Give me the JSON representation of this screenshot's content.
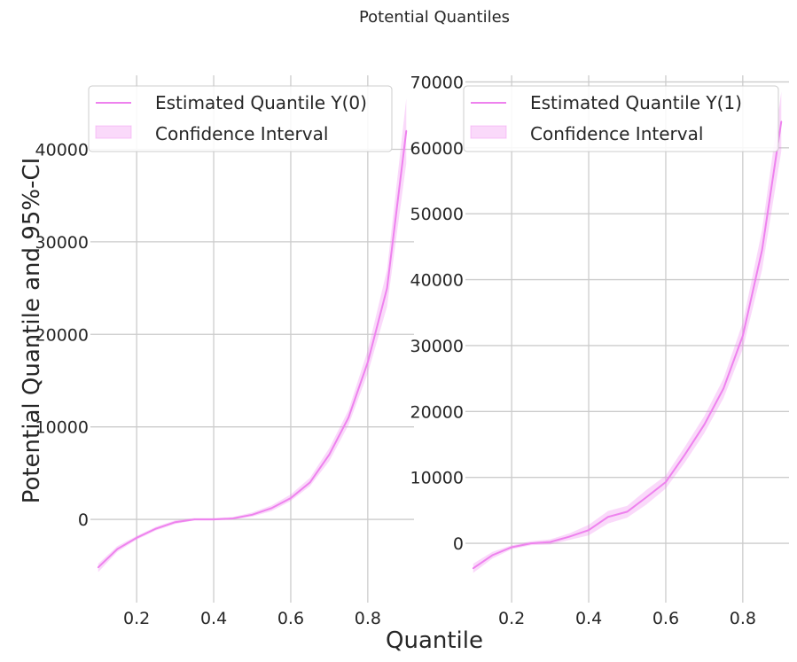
{
  "figure": {
    "suptitle": "Potential Quantiles",
    "xlabel": "Quantile",
    "ylabel": "Potential Quantile and 95%-CI"
  },
  "colors": {
    "line": "#ee82ee",
    "band": "#ee82ee",
    "grid": "#cccccc",
    "text": "#262626"
  },
  "chart_data": [
    {
      "type": "line",
      "xlim": [
        0.08,
        0.92
      ],
      "ylim": [
        -9000,
        48000
      ],
      "x_ticks": [
        0.2,
        0.4,
        0.6,
        0.8
      ],
      "x_tick_labels": [
        "0.2",
        "0.4",
        "0.6",
        "0.8"
      ],
      "y_ticks": [
        0,
        10000,
        20000,
        30000,
        40000
      ],
      "y_tick_labels": [
        "0",
        "10000",
        "20000",
        "30000",
        "40000"
      ],
      "grid": true,
      "legend": {
        "placement": "upper-left",
        "entries": [
          "Estimated Quantile Y(0)",
          "Confidence Interval"
        ]
      },
      "series": [
        {
          "name": "Estimated Quantile Y(0)",
          "x": [
            0.1,
            0.15,
            0.2,
            0.25,
            0.3,
            0.35,
            0.4,
            0.45,
            0.5,
            0.55,
            0.6,
            0.65,
            0.7,
            0.75,
            0.8,
            0.85,
            0.9
          ],
          "y": [
            -5200,
            -3200,
            -2000,
            -1000,
            -300,
            0,
            0,
            100,
            500,
            1200,
            2300,
            4000,
            7000,
            11000,
            17000,
            25000,
            42000
          ],
          "ci_lower": [
            -5700,
            -3500,
            -2200,
            -1200,
            -500,
            -100,
            -100,
            0,
            300,
            900,
            2000,
            3600,
            6300,
            10200,
            15800,
            23000,
            38500
          ],
          "ci_upper": [
            -4800,
            -2900,
            -1800,
            -800,
            -100,
            150,
            150,
            250,
            750,
            1500,
            2700,
            4500,
            7700,
            11800,
            18300,
            27000,
            45500
          ]
        }
      ]
    },
    {
      "type": "line",
      "xlim": [
        0.08,
        0.92
      ],
      "ylim": [
        -9000,
        71000
      ],
      "x_ticks": [
        0.2,
        0.4,
        0.6,
        0.8
      ],
      "x_tick_labels": [
        "0.2",
        "0.4",
        "0.6",
        "0.8"
      ],
      "y_ticks": [
        0,
        10000,
        20000,
        30000,
        40000,
        50000,
        60000,
        70000
      ],
      "y_tick_labels": [
        "0",
        "10000",
        "20000",
        "30000",
        "40000",
        "50000",
        "60000",
        "70000"
      ],
      "grid": true,
      "legend": {
        "placement": "upper-left",
        "entries": [
          "Estimated Quantile Y(1)",
          "Confidence Interval"
        ]
      },
      "series": [
        {
          "name": "Estimated Quantile Y(1)",
          "x": [
            0.1,
            0.15,
            0.2,
            0.25,
            0.3,
            0.35,
            0.4,
            0.45,
            0.5,
            0.55,
            0.6,
            0.65,
            0.7,
            0.75,
            0.8,
            0.85,
            0.9
          ],
          "y": [
            -3800,
            -1800,
            -600,
            0,
            200,
            1000,
            2000,
            4000,
            4800,
            7000,
            9300,
            13500,
            18000,
            23500,
            31500,
            44500,
            64000
          ],
          "ci_lower": [
            -4500,
            -2300,
            -900,
            -300,
            -200,
            500,
            1200,
            3000,
            3900,
            5900,
            8300,
            12300,
            16700,
            22000,
            29500,
            41500,
            59500
          ],
          "ci_upper": [
            -3100,
            -1300,
            -300,
            300,
            600,
            1500,
            2800,
            4900,
            5700,
            8100,
            10300,
            14700,
            19300,
            25000,
            33500,
            47500,
            68500
          ]
        }
      ]
    }
  ]
}
